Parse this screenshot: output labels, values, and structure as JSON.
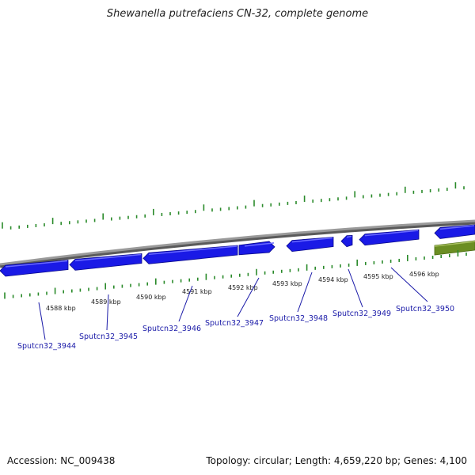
{
  "title": "Shewanella putrefaciens CN-32, complete genome",
  "footer": {
    "accession": "Accession: NC_009438",
    "stats": "Topology: circular; Length: 4,659,220 bp; Genes: 4,100"
  },
  "colors": {
    "backbone": "#8a8a8a",
    "gene_fill": "#1a1ae6",
    "gene_edge": "#0a0a8c",
    "other_feature": "#6b8e23",
    "tick": "#2a8a2a",
    "label": "#1a1aa8"
  },
  "kbp_labels": [
    "4588 kbp",
    "4589 kbp",
    "4590 kbp",
    "4591 kbp",
    "4592 kbp",
    "4593 kbp",
    "4594 kbp",
    "4595 kbp",
    "4596 kbp"
  ],
  "genes": [
    {
      "label": "Sputcn32_3944"
    },
    {
      "label": "Sputcn32_3945"
    },
    {
      "label": "Sputcn32_3946"
    },
    {
      "label": "Sputcn32_3947"
    },
    {
      "label": "Sputcn32_3948"
    },
    {
      "label": "Sputcn32_3949"
    },
    {
      "label": "Sputcn32_3950"
    }
  ]
}
